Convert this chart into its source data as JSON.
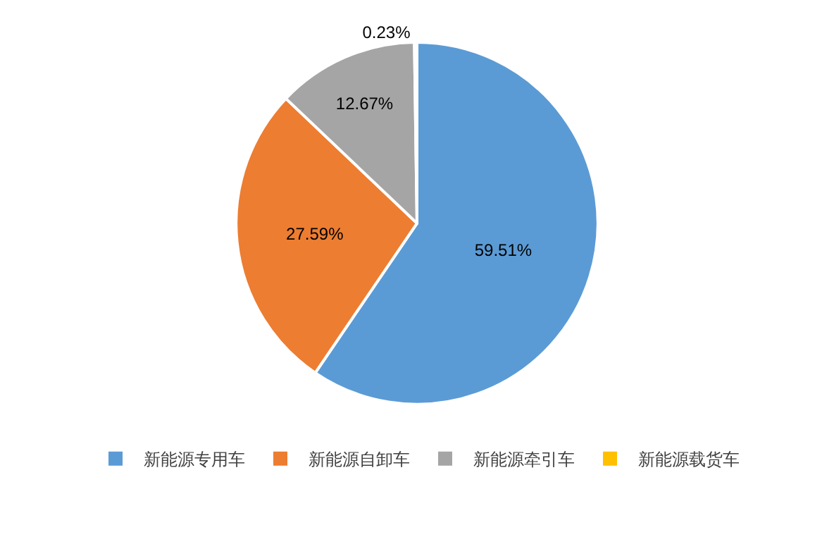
{
  "chart_data": {
    "type": "pie",
    "categories": [
      "新能源专用车",
      "新能源自卸车",
      "新能源牵引车",
      "新能源载货车"
    ],
    "values": [
      59.51,
      27.59,
      12.67,
      0.23
    ],
    "colors": [
      "#5b9bd5",
      "#ed7d31",
      "#a5a5a5",
      "#ffc000"
    ],
    "value_labels": [
      "59.51%",
      "27.59%",
      "12.67%",
      "0.23%"
    ],
    "legend": "bottom"
  }
}
